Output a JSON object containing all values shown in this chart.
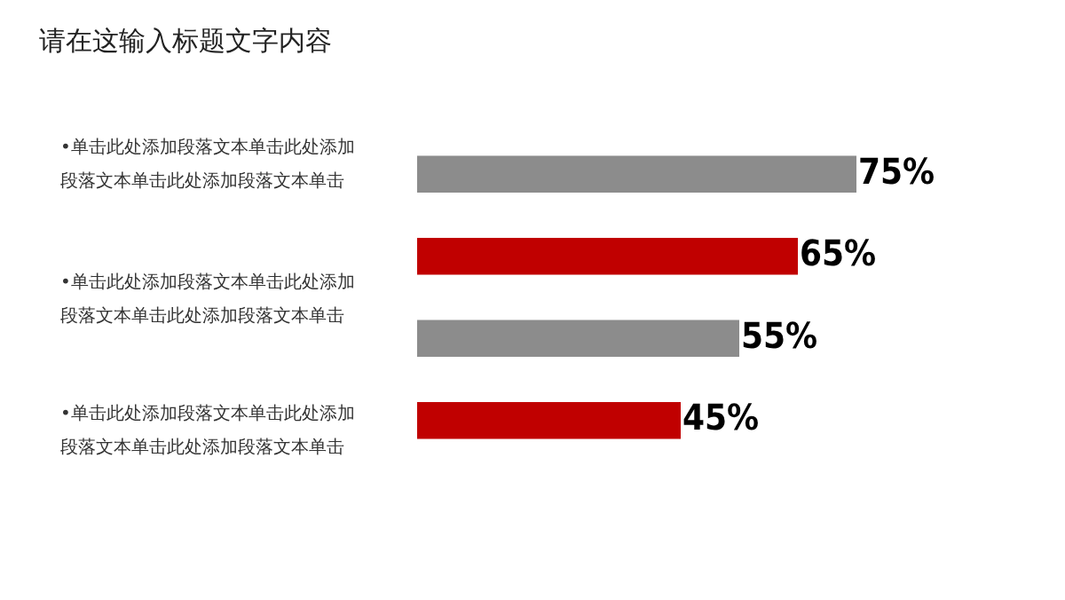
{
  "chart_data": {
    "type": "bar",
    "orientation": "horizontal",
    "title": "请在这输入标题文字内容",
    "categories": [
      null,
      null,
      null,
      null
    ],
    "values": [
      75,
      65,
      55,
      45
    ],
    "colors": [
      "#8c8c8c",
      "#c00000",
      "#8c8c8c",
      "#c00000"
    ],
    "value_labels": [
      "75%",
      "65%",
      "55%",
      "45%"
    ],
    "annotations": [
      "•单击此处添加段落文本单击此处添加段落文本单击此处添加段落文本单击",
      "•单击此处添加段落文本单击此处添加段落文本单击此处添加段落文本单击",
      "•单击此处添加段落文本单击此处添加段落文本单击此处添加段落文本单击"
    ],
    "legend": false
  }
}
